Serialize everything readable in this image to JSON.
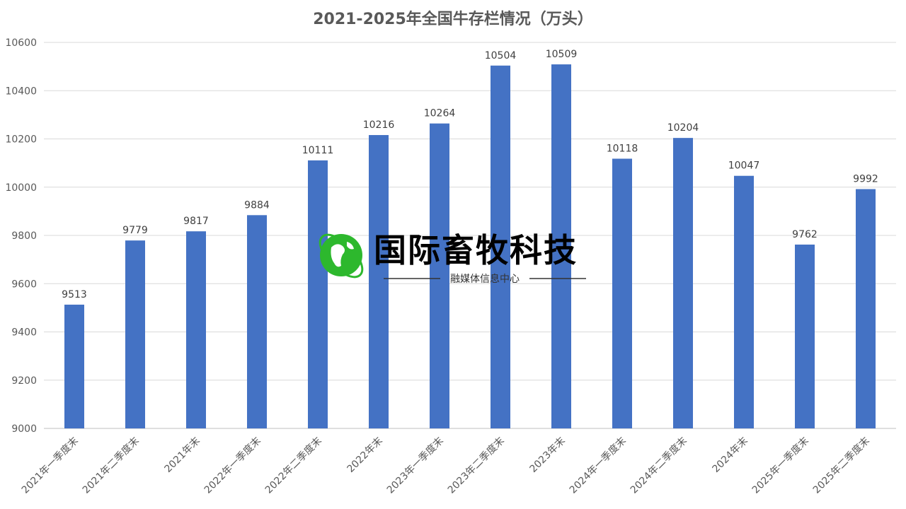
{
  "chart_data": {
    "type": "bar",
    "title": "2021-2025年全国牛存栏情况（万头）",
    "xlabel": "",
    "ylabel": "",
    "ylim": [
      9000,
      10600
    ],
    "yticks": [
      9000,
      9200,
      9400,
      9600,
      9800,
      10000,
      10200,
      10400,
      10600
    ],
    "grid": true,
    "bar_color": "#4472C4",
    "categories": [
      "2021年一季度末",
      "2021年二季度末",
      "2021年末",
      "2022年一季度末",
      "2022年二季度末",
      "2022年末",
      "2023年一季度末",
      "2023年二季度末",
      "2023年末",
      "2024年一季度末",
      "2024年二季度末",
      "2024年末",
      "2025年一季度末",
      "2025年二季度末"
    ],
    "values": [
      9513,
      9779,
      9817,
      9884,
      10111,
      10216,
      10264,
      10504,
      10509,
      10118,
      10204,
      10047,
      9762,
      9992
    ]
  },
  "watermark": {
    "name": "国际畜牧科技",
    "subtitle": "融媒体信息中心",
    "icon": "globe-icon",
    "color": "#2DB82D"
  }
}
